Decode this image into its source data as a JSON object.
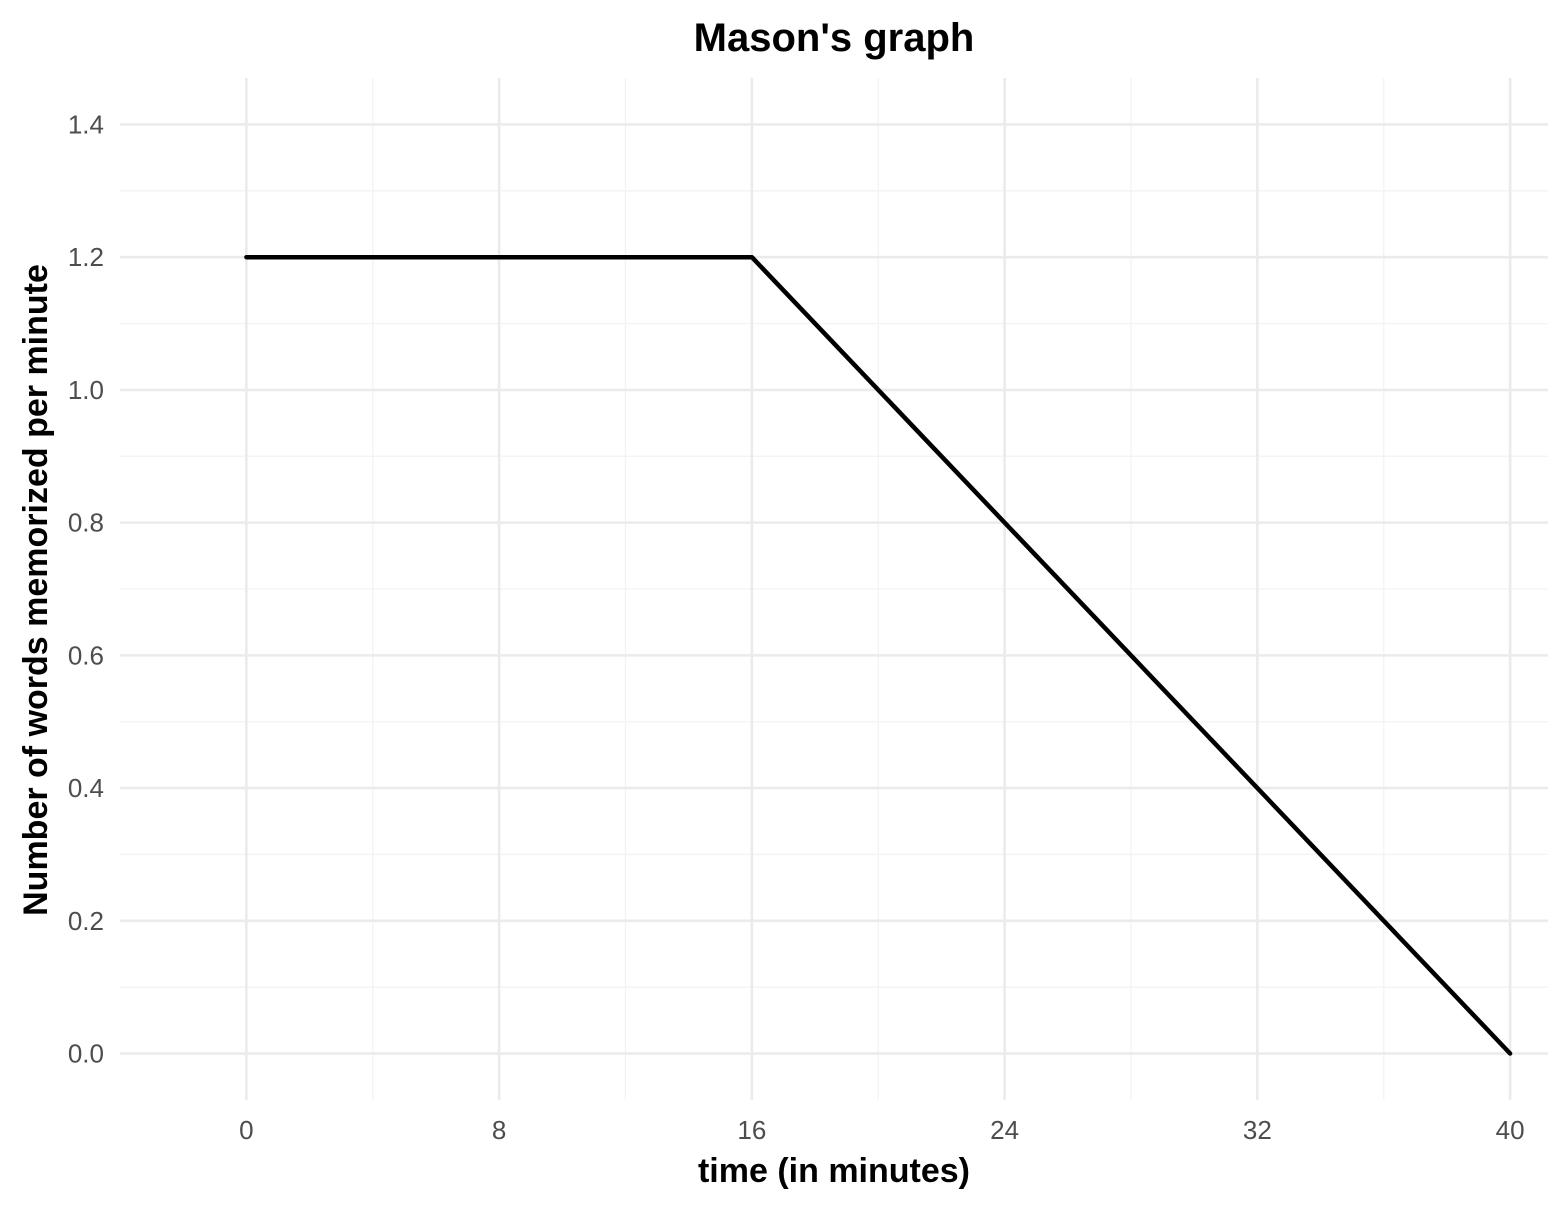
{
  "chart_data": {
    "type": "line",
    "title": "Mason's graph",
    "xlabel": "time (in minutes)",
    "ylabel": "Number of words memorized per minute",
    "xlim": [
      -4,
      41.2
    ],
    "ylim": [
      -0.07,
      1.47
    ],
    "x_ticks": [
      0,
      8,
      16,
      24,
      32,
      40
    ],
    "x_tick_labels": [
      "0",
      "8",
      "16",
      "24",
      "32",
      "40"
    ],
    "y_ticks": [
      0.0,
      0.2,
      0.4,
      0.6,
      0.8,
      1.0,
      1.2,
      1.4
    ],
    "y_tick_labels": [
      "0.0",
      "0.2",
      "0.4",
      "0.6",
      "0.8",
      "1.0",
      "1.2",
      "1.4"
    ],
    "x_minor_ticks": [
      4,
      12,
      20,
      28,
      36
    ],
    "y_minor_ticks": [
      0.1,
      0.3,
      0.5,
      0.7,
      0.9,
      1.1,
      1.3
    ],
    "grid": true,
    "legend": "none",
    "series": [
      {
        "x": [
          0,
          16,
          40
        ],
        "y": [
          1.2,
          1.2,
          0.0
        ],
        "color": "#000000"
      }
    ]
  }
}
